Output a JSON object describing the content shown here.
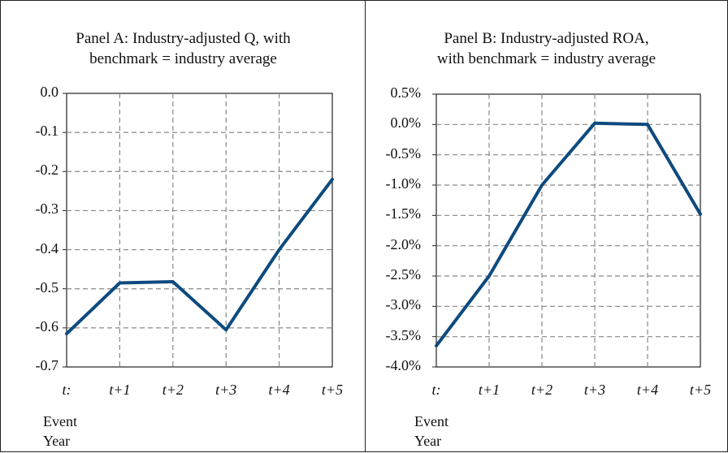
{
  "chart_data": [
    {
      "type": "line",
      "title_lines": [
        "Panel A: Industry-adjusted Q, with",
        "benchmark = industry average"
      ],
      "x": [
        "t:",
        "t+1",
        "t+2",
        "t+3",
        "t+4",
        "t+5"
      ],
      "y_ticks": [
        "0.0",
        "-0.1",
        "-0.2",
        "-0.3",
        "-0.4",
        "-0.5",
        "-0.6",
        "-0.7"
      ],
      "ylim": [
        -0.7,
        0.0
      ],
      "x_axis_title": [
        "Event",
        "Year"
      ],
      "grid": true,
      "series": [
        {
          "values": [
            -0.615,
            -0.485,
            -0.482,
            -0.605,
            -0.4,
            -0.22
          ],
          "color": "#0d4a7e"
        }
      ]
    },
    {
      "type": "line",
      "title_lines": [
        "Panel B: Industry-adjusted ROA,",
        "with benchmark = industry average"
      ],
      "x": [
        "t:",
        "t+1",
        "t+2",
        "t+3",
        "t+4",
        "t+5"
      ],
      "y_ticks": [
        "0.5%",
        "0.0%",
        "-0.5%",
        "-1.0%",
        "-1.5%",
        "-2.0%",
        "-2.5%",
        "-3.0%",
        "-3.5%",
        "-4.0%"
      ],
      "ylim": [
        -4.0,
        0.5
      ],
      "y_unit": "%",
      "x_axis_title": [
        "Event",
        "Year"
      ],
      "grid": true,
      "series": [
        {
          "values": [
            -3.65,
            -2.5,
            -1.0,
            0.02,
            0.0,
            -1.48
          ],
          "color": "#0d4a7e"
        }
      ]
    }
  ]
}
